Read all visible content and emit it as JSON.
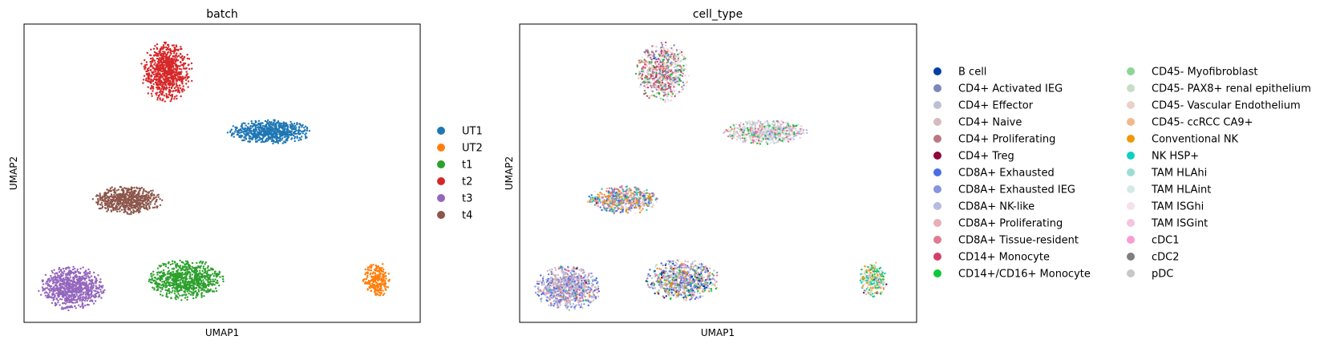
{
  "chart_data": [
    {
      "type": "scatter",
      "title": "batch",
      "xlabel": "UMAP1",
      "ylabel": "UMAP2",
      "grid": false,
      "legend_placement": "right",
      "series": [
        {
          "name": "UT1",
          "color": "#1f77b4",
          "center": [
            6.2,
            6.7
          ],
          "spread": [
            0.95,
            0.38
          ],
          "n": 700
        },
        {
          "name": "UT2",
          "color": "#ff7f0e",
          "center": [
            8.9,
            1.5
          ],
          "spread": [
            0.32,
            0.55
          ],
          "n": 260
        },
        {
          "name": "t1",
          "color": "#2ca02c",
          "center": [
            4.1,
            1.5
          ],
          "spread": [
            0.85,
            0.65
          ],
          "n": 800
        },
        {
          "name": "t2",
          "color": "#d62728",
          "center": [
            3.6,
            8.8
          ],
          "spread": [
            0.6,
            0.95
          ],
          "n": 800
        },
        {
          "name": "t3",
          "color": "#9467bd",
          "center": [
            1.2,
            1.2
          ],
          "spread": [
            0.75,
            0.7
          ],
          "n": 850
        },
        {
          "name": "t4",
          "color": "#8c564b",
          "center": [
            2.6,
            4.3
          ],
          "spread": [
            0.8,
            0.45
          ],
          "n": 650
        }
      ],
      "xlim": [
        0,
        10
      ],
      "ylim": [
        0,
        10.5
      ]
    },
    {
      "type": "scatter",
      "title": "cell_type",
      "xlabel": "UMAP1",
      "ylabel": "UMAP2",
      "grid": false,
      "legend_placement": "right",
      "clusters": [
        {
          "center": [
            3.6,
            8.8
          ],
          "spread": [
            0.6,
            0.95
          ],
          "n": 800,
          "mix": [
            21,
            22,
            20,
            12,
            4,
            1,
            11,
            16
          ]
        },
        {
          "center": [
            6.2,
            6.7
          ],
          "spread": [
            0.95,
            0.38
          ],
          "n": 700,
          "mix": [
            21,
            22,
            20,
            2,
            14,
            8,
            10,
            12
          ]
        },
        {
          "center": [
            2.6,
            4.3
          ],
          "spread": [
            0.8,
            0.45
          ],
          "n": 650,
          "mix": [
            16,
            17,
            18,
            6,
            1,
            10,
            21
          ]
        },
        {
          "center": [
            1.2,
            1.2
          ],
          "spread": [
            0.75,
            0.7
          ],
          "n": 850,
          "mix": [
            6,
            7,
            8,
            1,
            2,
            9,
            10,
            3
          ]
        },
        {
          "center": [
            4.1,
            1.5
          ],
          "spread": [
            0.85,
            0.65
          ],
          "n": 800,
          "mix": [
            6,
            7,
            1,
            2,
            0,
            9,
            8,
            10,
            12,
            17,
            14
          ]
        },
        {
          "center": [
            8.9,
            1.5
          ],
          "spread": [
            0.32,
            0.55
          ],
          "n": 260,
          "mix": [
            17,
            16,
            14,
            18,
            21,
            12
          ]
        }
      ],
      "categories": [
        {
          "name": "B cell",
          "color": "#023fa5"
        },
        {
          "name": "CD4+ Activated IEG",
          "color": "#7d87b9"
        },
        {
          "name": "CD4+ Effector",
          "color": "#bec1d4"
        },
        {
          "name": "CD4+ Naive",
          "color": "#d6bcc0"
        },
        {
          "name": "CD4+ Proliferating",
          "color": "#bb7784"
        },
        {
          "name": "CD4+ Treg",
          "color": "#8e063b"
        },
        {
          "name": "CD8A+ Exhausted",
          "color": "#4a6fe3"
        },
        {
          "name": "CD8A+ Exhausted IEG",
          "color": "#8595e1"
        },
        {
          "name": "CD8A+ NK-like",
          "color": "#b5bbe3"
        },
        {
          "name": "CD8A+ Proliferating",
          "color": "#e6afb9"
        },
        {
          "name": "CD8A+ Tissue-resident",
          "color": "#e07b91"
        },
        {
          "name": "CD14+ Monocyte",
          "color": "#d33f6a"
        },
        {
          "name": "CD14+/CD16+ Monocyte",
          "color": "#11c638"
        },
        {
          "name": "CD45- Myofibroblast",
          "color": "#8dd593"
        },
        {
          "name": "CD45- PAX8+ renal epithelium",
          "color": "#c6dec7"
        },
        {
          "name": "CD45- Vascular Endothelium",
          "color": "#ead3c6"
        },
        {
          "name": "CD45- ccRCC CA9+",
          "color": "#f0b98d"
        },
        {
          "name": "Conventional NK",
          "color": "#ef9708"
        },
        {
          "name": "NK HSP+",
          "color": "#0fcfc0"
        },
        {
          "name": "TAM HLAhi",
          "color": "#9cded6"
        },
        {
          "name": "TAM HLAint",
          "color": "#d5eae7"
        },
        {
          "name": "TAM ISGhi",
          "color": "#f3e1eb"
        },
        {
          "name": "TAM ISGint",
          "color": "#f6c4e1"
        },
        {
          "name": "cDC1",
          "color": "#f79cd4"
        },
        {
          "name": "cDC2",
          "color": "#7f7f7f"
        },
        {
          "name": "pDC",
          "color": "#c7c7c7"
        }
      ],
      "xlim": [
        0,
        10
      ],
      "ylim": [
        0,
        10.5
      ]
    }
  ]
}
